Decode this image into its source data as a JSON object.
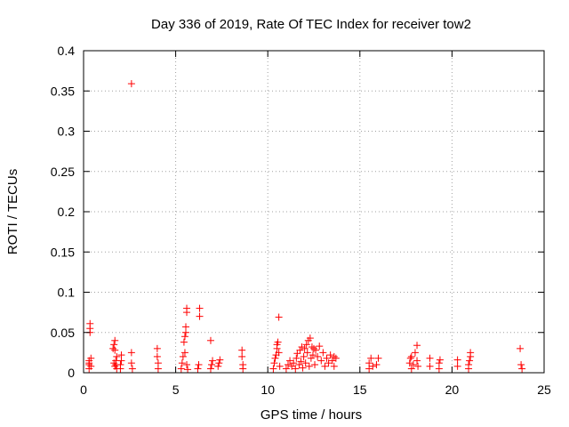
{
  "chart_data": {
    "type": "scatter",
    "title": "Day 336 of 2019, Rate Of TEC Index for receiver tow2",
    "xlabel": "GPS time / hours",
    "ylabel": "ROTI / TECUs",
    "xlim": [
      0,
      25
    ],
    "ylim": [
      0,
      0.4
    ],
    "x_ticks": [
      "0",
      "5",
      "10",
      "15",
      "20",
      "25"
    ],
    "y_ticks": [
      "0",
      "0.05",
      "0.1",
      "0.15",
      "0.2",
      "0.25",
      "0.3",
      "0.35",
      "0.4"
    ],
    "grid": true,
    "marker": "+",
    "marker_color": "#ff0000",
    "series": [
      {
        "points": [
          [
            0.3,
            0.005
          ],
          [
            0.3,
            0.01
          ],
          [
            0.3,
            0.012
          ],
          [
            0.3,
            0.015
          ],
          [
            0.35,
            0.05
          ],
          [
            0.35,
            0.055
          ],
          [
            0.35,
            0.061
          ],
          [
            0.4,
            0.008
          ],
          [
            0.4,
            0.018
          ],
          [
            1.6,
            0.03
          ],
          [
            1.65,
            0.035
          ],
          [
            1.7,
            0.04
          ],
          [
            1.7,
            0.028
          ],
          [
            1.65,
            0.012
          ],
          [
            1.7,
            0.008
          ],
          [
            1.75,
            0.01
          ],
          [
            1.8,
            0.02
          ],
          [
            1.8,
            0.005
          ],
          [
            1.75,
            0.015
          ],
          [
            2.0,
            0.005
          ],
          [
            2.0,
            0.01
          ],
          [
            2.05,
            0.015
          ],
          [
            2.05,
            0.022
          ],
          [
            2.6,
            0.359
          ],
          [
            2.6,
            0.025
          ],
          [
            2.6,
            0.012
          ],
          [
            2.65,
            0.005
          ],
          [
            4.0,
            0.03
          ],
          [
            4.0,
            0.02
          ],
          [
            4.05,
            0.012
          ],
          [
            4.05,
            0.005
          ],
          [
            5.3,
            0.005
          ],
          [
            5.35,
            0.012
          ],
          [
            5.4,
            0.02
          ],
          [
            5.45,
            0.038
          ],
          [
            5.5,
            0.045
          ],
          [
            5.55,
            0.05
          ],
          [
            5.55,
            0.057
          ],
          [
            5.6,
            0.075
          ],
          [
            5.6,
            0.08
          ],
          [
            5.5,
            0.025
          ],
          [
            5.6,
            0.01
          ],
          [
            5.65,
            0.004
          ],
          [
            6.2,
            0.005
          ],
          [
            6.25,
            0.01
          ],
          [
            6.3,
            0.08
          ],
          [
            6.3,
            0.07
          ],
          [
            6.9,
            0.04
          ],
          [
            6.9,
            0.005
          ],
          [
            6.95,
            0.01
          ],
          [
            7.0,
            0.015
          ],
          [
            7.3,
            0.008
          ],
          [
            7.35,
            0.012
          ],
          [
            7.4,
            0.016
          ],
          [
            8.6,
            0.028
          ],
          [
            8.6,
            0.02
          ],
          [
            8.65,
            0.01
          ],
          [
            8.65,
            0.005
          ],
          [
            10.3,
            0.005
          ],
          [
            10.35,
            0.012
          ],
          [
            10.4,
            0.018
          ],
          [
            10.45,
            0.022
          ],
          [
            10.5,
            0.03
          ],
          [
            10.5,
            0.035
          ],
          [
            10.55,
            0.038
          ],
          [
            10.6,
            0.069
          ],
          [
            10.6,
            0.025
          ],
          [
            10.65,
            0.008
          ],
          [
            11.0,
            0.005
          ],
          [
            11.1,
            0.01
          ],
          [
            11.2,
            0.015
          ],
          [
            11.3,
            0.008
          ],
          [
            11.4,
            0.012
          ],
          [
            11.5,
            0.005
          ],
          [
            11.55,
            0.018
          ],
          [
            11.6,
            0.024
          ],
          [
            11.7,
            0.01
          ],
          [
            11.75,
            0.028
          ],
          [
            11.8,
            0.014
          ],
          [
            11.85,
            0.032
          ],
          [
            11.9,
            0.006
          ],
          [
            11.95,
            0.02
          ],
          [
            12.0,
            0.03
          ],
          [
            12.05,
            0.012
          ],
          [
            12.1,
            0.035
          ],
          [
            12.15,
            0.025
          ],
          [
            12.2,
            0.04
          ],
          [
            12.25,
            0.008
          ],
          [
            12.3,
            0.043
          ],
          [
            12.35,
            0.018
          ],
          [
            12.4,
            0.032
          ],
          [
            12.45,
            0.022
          ],
          [
            12.5,
            0.03
          ],
          [
            12.55,
            0.01
          ],
          [
            12.6,
            0.028
          ],
          [
            12.7,
            0.02
          ],
          [
            12.8,
            0.033
          ],
          [
            12.9,
            0.015
          ],
          [
            13.0,
            0.025
          ],
          [
            13.1,
            0.008
          ],
          [
            13.2,
            0.018
          ],
          [
            13.3,
            0.012
          ],
          [
            13.4,
            0.022
          ],
          [
            13.5,
            0.015
          ],
          [
            13.6,
            0.02
          ],
          [
            13.6,
            0.008
          ],
          [
            13.7,
            0.018
          ],
          [
            15.5,
            0.005
          ],
          [
            15.5,
            0.012
          ],
          [
            15.6,
            0.018
          ],
          [
            15.7,
            0.008
          ],
          [
            15.9,
            0.01
          ],
          [
            16.0,
            0.018
          ],
          [
            17.7,
            0.012
          ],
          [
            17.75,
            0.018
          ],
          [
            17.8,
            0.02
          ],
          [
            17.8,
            0.005
          ],
          [
            17.9,
            0.01
          ],
          [
            18.0,
            0.025
          ],
          [
            18.1,
            0.034
          ],
          [
            18.1,
            0.015
          ],
          [
            18.15,
            0.008
          ],
          [
            18.8,
            0.008
          ],
          [
            18.8,
            0.018
          ],
          [
            19.3,
            0.005
          ],
          [
            19.3,
            0.012
          ],
          [
            19.35,
            0.016
          ],
          [
            20.3,
            0.008
          ],
          [
            20.3,
            0.016
          ],
          [
            20.9,
            0.005
          ],
          [
            20.9,
            0.01
          ],
          [
            20.95,
            0.015
          ],
          [
            21.0,
            0.02
          ],
          [
            21.0,
            0.025
          ],
          [
            23.7,
            0.03
          ],
          [
            23.75,
            0.01
          ],
          [
            23.8,
            0.005
          ]
        ]
      }
    ]
  }
}
